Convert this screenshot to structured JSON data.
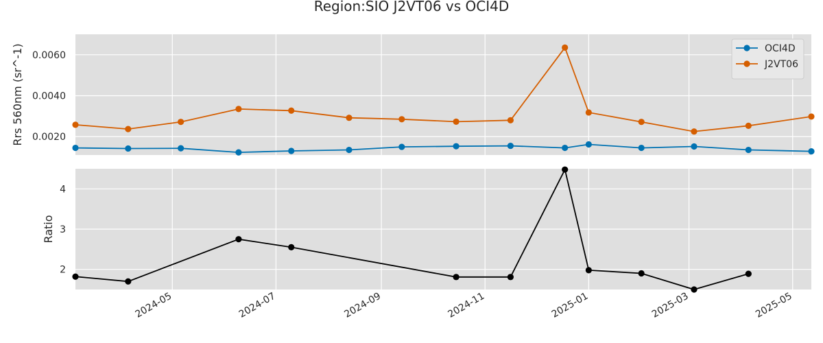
{
  "chart_data": {
    "type": "line",
    "title": "Region:SIO J2VT06 vs OCI4D",
    "xlabel": "",
    "x_tick_labels": [
      "2024-05",
      "2024-07",
      "2024-09",
      "2024-11",
      "2025-01",
      "2025-03",
      "2025-05"
    ],
    "x_tick_dates": [
      "2024-05-01",
      "2024-07-01",
      "2024-09-01",
      "2024-11-01",
      "2025-01-01",
      "2025-03-01",
      "2025-05-01"
    ],
    "xlim": [
      "2024-03-05",
      "2025-05-12"
    ],
    "grid": true,
    "panels": [
      {
        "ylabel": "Rrs 560nm (sr^-1)",
        "ylim": [
          0.0011,
          0.007
        ],
        "y_ticks": [
          0.002,
          0.004,
          0.006
        ],
        "y_tick_labels": [
          "0.0020",
          "0.0040",
          "0.0060"
        ],
        "legend": "top-right",
        "series": [
          {
            "name": "OCI4D",
            "color": "#0072b2",
            "points": [
              [
                "2024-03-05",
                0.00145
              ],
              [
                "2024-04-05",
                0.00142
              ],
              [
                "2024-05-06",
                0.00143
              ],
              [
                "2024-06-09",
                0.00123
              ],
              [
                "2024-07-10",
                0.0013
              ],
              [
                "2024-08-13",
                0.00135
              ],
              [
                "2024-09-13",
                0.0015
              ],
              [
                "2024-10-15",
                0.00153
              ],
              [
                "2024-11-16",
                0.00155
              ],
              [
                "2024-12-18",
                0.00145
              ],
              [
                "2025-01-01",
                0.00162
              ],
              [
                "2025-02-01",
                0.00145
              ],
              [
                "2025-03-04",
                0.00152
              ],
              [
                "2025-04-05",
                0.00135
              ],
              [
                "2025-05-12",
                0.00128
              ]
            ]
          },
          {
            "name": "J2VT06",
            "color": "#d55e00",
            "points": [
              [
                "2024-03-05",
                0.00258
              ],
              [
                "2024-04-05",
                0.00237
              ],
              [
                "2024-05-06",
                0.00272
              ],
              [
                "2024-06-09",
                0.00335
              ],
              [
                "2024-07-10",
                0.00327
              ],
              [
                "2024-08-13",
                0.00292
              ],
              [
                "2024-09-13",
                0.00285
              ],
              [
                "2024-10-15",
                0.00273
              ],
              [
                "2024-11-16",
                0.0028
              ],
              [
                "2024-12-18",
                0.00635
              ],
              [
                "2025-01-01",
                0.00318
              ],
              [
                "2025-02-01",
                0.00272
              ],
              [
                "2025-03-04",
                0.00225
              ],
              [
                "2025-04-05",
                0.00253
              ],
              [
                "2025-05-12",
                0.00298
              ]
            ]
          }
        ]
      },
      {
        "ylabel": "Ratio",
        "ylim": [
          1.5,
          4.5
        ],
        "y_ticks": [
          2,
          3,
          4
        ],
        "y_tick_labels": [
          "2",
          "3",
          "4"
        ],
        "series": [
          {
            "color": "#000000",
            "points": [
              [
                "2024-03-05",
                1.82
              ],
              [
                "2024-04-05",
                1.7
              ],
              [
                "2024-06-09",
                2.75
              ],
              [
                "2024-07-10",
                2.55
              ],
              [
                "2024-10-15",
                1.81
              ],
              [
                "2024-11-16",
                1.81
              ],
              [
                "2024-12-18",
                4.48
              ],
              [
                "2025-01-01",
                1.98
              ],
              [
                "2025-02-01",
                1.9
              ],
              [
                "2025-03-04",
                1.5
              ],
              [
                "2025-04-05",
                1.89
              ]
            ]
          }
        ]
      }
    ]
  }
}
